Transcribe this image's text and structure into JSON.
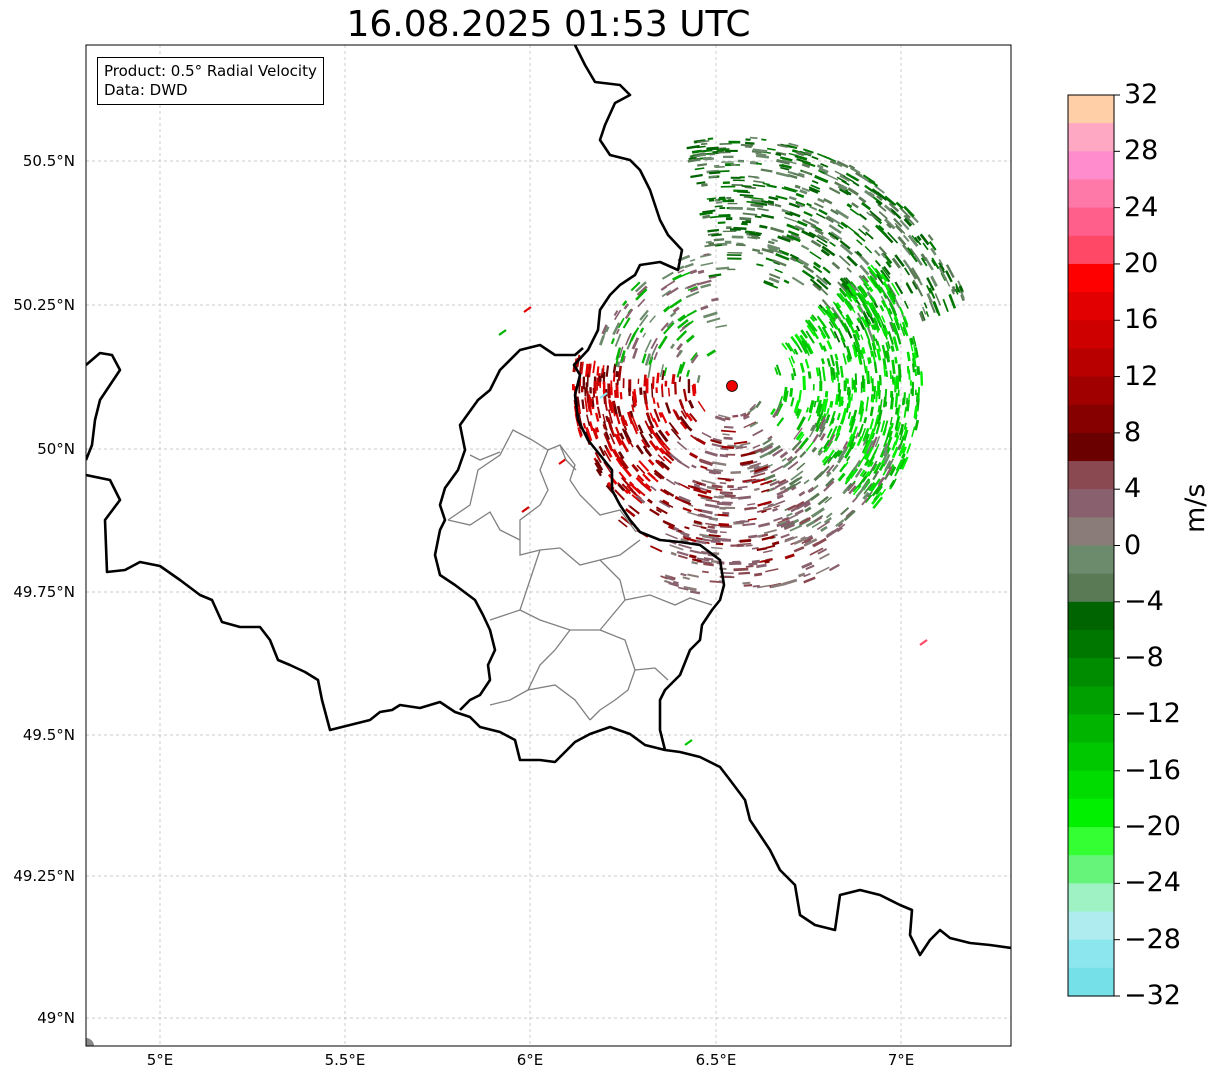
{
  "title": "16.08.2025 01:53 UTC",
  "info": {
    "product": "Product: 0.5° Radial Velocity",
    "data_source": "Data: DWD"
  },
  "map": {
    "lon_range": [
      4.8,
      7.3
    ],
    "lat_range": [
      48.95,
      50.7
    ],
    "lat_ticks": [
      "50.5°N",
      "50.25°N",
      "50°N",
      "49.75°N",
      "49.5°N",
      "49.25°N",
      "49°N"
    ],
    "lon_ticks": [
      "5°E",
      "5.5°E",
      "6°E",
      "6.5°E",
      "7°E"
    ],
    "gridlines": true,
    "radar_site": {
      "lon": 6.547,
      "lat": 50.11,
      "color": "#ee0000"
    }
  },
  "colorbar": {
    "label": "m/s",
    "min": -32,
    "max": 32,
    "ticks": [
      "32",
      "28",
      "24",
      "20",
      "16",
      "12",
      "8",
      "4",
      "0",
      "−4",
      "−8",
      "−12",
      "−16",
      "−20",
      "−24",
      "−28",
      "−32"
    ],
    "colors_top_to_bottom": [
      "#ffcfa8",
      "#ffa8c4",
      "#ff8ccc",
      "#ff79a8",
      "#ff5f8a",
      "#ff4865",
      "#ff0000",
      "#e30000",
      "#cf0000",
      "#b80000",
      "#a00000",
      "#860000",
      "#6a0000",
      "#8a4850",
      "#88606e",
      "#8a7c78",
      "#6c8a6c",
      "#5a7a56",
      "#006400",
      "#007800",
      "#008c00",
      "#00a000",
      "#00b400",
      "#00c800",
      "#00dc00",
      "#00f000",
      "#33ff33",
      "#66f57a",
      "#9ef2c4",
      "#aeecf0",
      "#8ce6ee",
      "#76e0e8"
    ]
  }
}
